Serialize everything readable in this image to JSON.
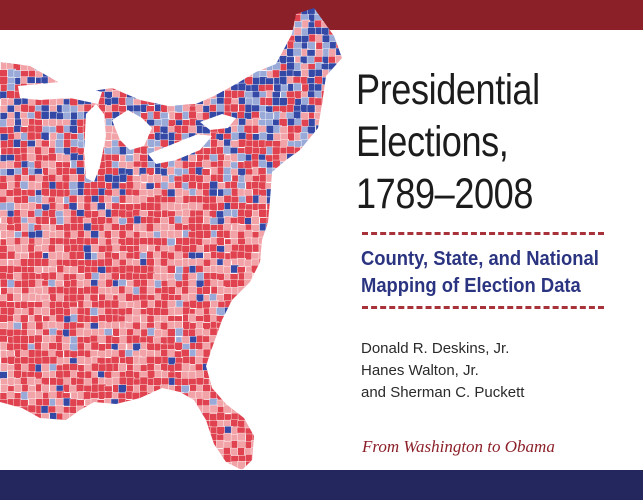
{
  "cover": {
    "title_lines": [
      "Presidential",
      "Elections,",
      "1789–2008"
    ],
    "subtitle_lines": [
      "County, State, and National",
      "Mapping of Election Data"
    ],
    "authors": [
      "Donald R. Deskins, Jr.",
      "Hanes Walton, Jr.",
      "and Sherman C. Puckett"
    ],
    "tagline": "From Washington to Obama"
  },
  "colors": {
    "top_band": "#8c2029",
    "bottom_band": "#24275e",
    "title": "#1c1c1c",
    "subtitle": "#2b3480",
    "dash": "#a8323a",
    "tagline": "#8c2029",
    "map_red": "#e0434f",
    "map_light_red": "#f2a3a8",
    "map_blue": "#3448a6",
    "map_light_blue": "#9aaad8",
    "water": "#ffffff"
  },
  "icons": [
    "county-election-map-image"
  ]
}
